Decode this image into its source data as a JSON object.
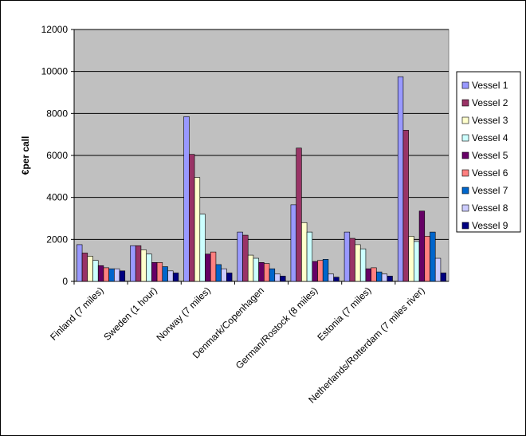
{
  "chart_data": {
    "type": "bar",
    "y_label": "€per call",
    "categories": [
      "Finland (7 miles)",
      "Sweden (1 hour)",
      "Norway (7 miles)",
      "Denmark/Copenhagen",
      "German/Rostock (8 miles)",
      "Estonia (7 miles)",
      "Netherlands/Rotterdam (7 miles river)"
    ],
    "series": [
      {
        "name": "Vessel 1",
        "color": "#9999ff",
        "values": [
          1750,
          1700,
          7850,
          2350,
          3650,
          2350,
          9750
        ]
      },
      {
        "name": "Vessel 2",
        "color": "#993366",
        "values": [
          1350,
          1700,
          6050,
          2200,
          6350,
          2050,
          7200
        ]
      },
      {
        "name": "Vessel 3",
        "color": "#ffffcc",
        "values": [
          1200,
          1500,
          4950,
          1250,
          2800,
          1750,
          2150
        ]
      },
      {
        "name": "Vessel 4",
        "color": "#ccffff",
        "values": [
          1000,
          1300,
          3200,
          1100,
          2350,
          1550,
          1900
        ]
      },
      {
        "name": "Vessel 5",
        "color": "#660066",
        "values": [
          750,
          900,
          1300,
          900,
          950,
          600,
          3350
        ]
      },
      {
        "name": "Vessel 6",
        "color": "#ff8080",
        "values": [
          650,
          900,
          1400,
          850,
          1000,
          650,
          2150
        ]
      },
      {
        "name": "Vessel 7",
        "color": "#0066cc",
        "values": [
          600,
          700,
          800,
          600,
          1050,
          450,
          2350
        ]
      },
      {
        "name": "Vessel 8",
        "color": "#ccccff",
        "values": [
          600,
          500,
          600,
          350,
          350,
          350,
          1100
        ]
      },
      {
        "name": "Vessel 9",
        "color": "#000080",
        "values": [
          500,
          400,
          400,
          250,
          200,
          250,
          400
        ]
      }
    ],
    "ylim": [
      0,
      12000
    ],
    "yticks": [
      0,
      2000,
      4000,
      6000,
      8000,
      10000,
      12000
    ],
    "grid": true,
    "legend": "right",
    "plot_background": "#c0c0c0"
  }
}
